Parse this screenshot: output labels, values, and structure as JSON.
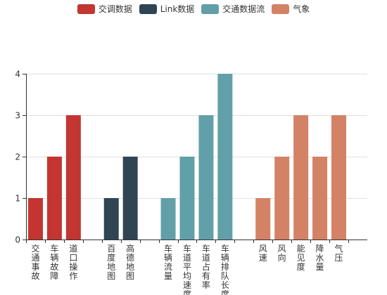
{
  "chart_data": {
    "type": "bar",
    "legend_placement": "top-center",
    "grid": true,
    "ylim": [
      0,
      4
    ],
    "yticks": [
      0,
      1,
      2,
      3,
      4
    ],
    "series": [
      {
        "name": "交调数据",
        "color": "#c23531",
        "categories": [
          "交通事故",
          "车辆故障",
          "道口操作"
        ],
        "values": [
          1,
          2,
          3
        ]
      },
      {
        "name": "Link数据",
        "color": "#2f4554",
        "categories": [
          "百度地图",
          "高德地图"
        ],
        "values": [
          1,
          2
        ]
      },
      {
        "name": "交通数据流",
        "color": "#61a0a8",
        "categories": [
          "车辆流量",
          "车道平均速度",
          "车道占有率",
          "车辆排队长度"
        ],
        "values": [
          1,
          2,
          3,
          4
        ]
      },
      {
        "name": "气象",
        "color": "#d48265",
        "categories": [
          "风速",
          "风向",
          "能见度",
          "降水量",
          "气压"
        ],
        "values": [
          1,
          2,
          3,
          2,
          3
        ]
      }
    ]
  }
}
